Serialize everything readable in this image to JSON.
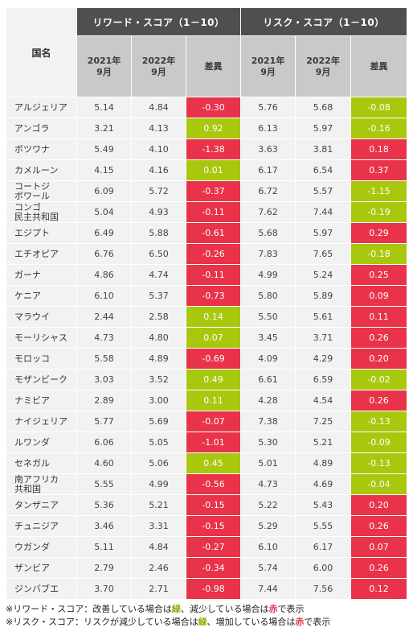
{
  "header": {
    "country_label": "国名",
    "reward_group": "リワード・スコア（1－10）",
    "risk_group": "リスク・スコア（1－10）",
    "col_2021": "2021年\n9月",
    "col_2022": "2022年\n9月",
    "col_diff": "差異"
  },
  "colors": {
    "improve": "#a8c80e",
    "worsen": "#e8334a"
  },
  "rows": [
    {
      "country": "アルジェリア",
      "r21": "5.14",
      "r22": "4.84",
      "rd": "-0.30",
      "rc": "red",
      "k21": "5.76",
      "k22": "5.68",
      "kd": "-0.08",
      "kc": "green"
    },
    {
      "country": "アンゴラ",
      "r21": "3.21",
      "r22": "4.13",
      "rd": "0.92",
      "rc": "green",
      "k21": "6.13",
      "k22": "5.97",
      "kd": "-0.16",
      "kc": "green"
    },
    {
      "country": "ボツワナ",
      "r21": "5.49",
      "r22": "4.10",
      "rd": "-1.38",
      "rc": "red",
      "k21": "3.63",
      "k22": "3.81",
      "kd": "0.18",
      "kc": "red"
    },
    {
      "country": "カメルーン",
      "r21": "4.15",
      "r22": "4.16",
      "rd": "0.01",
      "rc": "green",
      "k21": "6.17",
      "k22": "6.54",
      "kd": "0.37",
      "kc": "red"
    },
    {
      "country": "コートジ\nボワール",
      "r21": "6.09",
      "r22": "5.72",
      "rd": "-0.37",
      "rc": "red",
      "k21": "6.72",
      "k22": "5.57",
      "kd": "-1.15",
      "kc": "green"
    },
    {
      "country": "コンゴ\n民主共和国",
      "r21": "5.04",
      "r22": "4.93",
      "rd": "-0.11",
      "rc": "red",
      "k21": "7.62",
      "k22": "7.44",
      "kd": "-0.19",
      "kc": "green"
    },
    {
      "country": "エジプト",
      "r21": "6.49",
      "r22": "5.88",
      "rd": "-0.61",
      "rc": "red",
      "k21": "5.68",
      "k22": "5.97",
      "kd": "0.29",
      "kc": "red"
    },
    {
      "country": "エチオピア",
      "r21": "6.76",
      "r22": "6.50",
      "rd": "-0.26",
      "rc": "red",
      "k21": "7.83",
      "k22": "7.65",
      "kd": "-0.18",
      "kc": "green"
    },
    {
      "country": "ガーナ",
      "r21": "4.86",
      "r22": "4.74",
      "rd": "-0.11",
      "rc": "red",
      "k21": "4.99",
      "k22": "5.24",
      "kd": "0.25",
      "kc": "red"
    },
    {
      "country": "ケニア",
      "r21": "6.10",
      "r22": "5.37",
      "rd": "-0.73",
      "rc": "red",
      "k21": "5.80",
      "k22": "5.89",
      "kd": "0.09",
      "kc": "red"
    },
    {
      "country": "マラウイ",
      "r21": "2.44",
      "r22": "2.58",
      "rd": "0.14",
      "rc": "green",
      "k21": "5.50",
      "k22": "5.61",
      "kd": "0.11",
      "kc": "red"
    },
    {
      "country": "モーリシャス",
      "r21": "4.73",
      "r22": "4.80",
      "rd": "0.07",
      "rc": "green",
      "k21": "3.45",
      "k22": "3.71",
      "kd": "0.26",
      "kc": "red"
    },
    {
      "country": "モロッコ",
      "r21": "5.58",
      "r22": "4.89",
      "rd": "-0.69",
      "rc": "red",
      "k21": "4.09",
      "k22": "4.29",
      "kd": "0.20",
      "kc": "red"
    },
    {
      "country": "モザンビーク",
      "r21": "3.03",
      "r22": "3.52",
      "rd": "0.49",
      "rc": "green",
      "k21": "6.61",
      "k22": "6.59",
      "kd": "-0.02",
      "kc": "green"
    },
    {
      "country": "ナミビア",
      "r21": "2.89",
      "r22": "3.00",
      "rd": "0.11",
      "rc": "green",
      "k21": "4.28",
      "k22": "4.54",
      "kd": "0.26",
      "kc": "red"
    },
    {
      "country": "ナイジェリア",
      "r21": "5.77",
      "r22": "5.69",
      "rd": "-0.07",
      "rc": "red",
      "k21": "7.38",
      "k22": "7.25",
      "kd": "-0.13",
      "kc": "green"
    },
    {
      "country": "ルワンダ",
      "r21": "6.06",
      "r22": "5.05",
      "rd": "-1.01",
      "rc": "red",
      "k21": "5.30",
      "k22": "5.21",
      "kd": "-0.09",
      "kc": "green"
    },
    {
      "country": "セネガル",
      "r21": "4.60",
      "r22": "5.06",
      "rd": "0.45",
      "rc": "green",
      "k21": "5.01",
      "k22": "4.89",
      "kd": "-0.13",
      "kc": "green"
    },
    {
      "country": "南アフリカ\n共和国",
      "r21": "5.55",
      "r22": "4.99",
      "rd": "-0.56",
      "rc": "red",
      "k21": "4.73",
      "k22": "4.69",
      "kd": "-0.04",
      "kc": "green"
    },
    {
      "country": "タンザニア",
      "r21": "5.36",
      "r22": "5.21",
      "rd": "-0.15",
      "rc": "red",
      "k21": "5.22",
      "k22": "5.43",
      "kd": "0.20",
      "kc": "red"
    },
    {
      "country": "チュニジア",
      "r21": "3.46",
      "r22": "3.31",
      "rd": "-0.15",
      "rc": "red",
      "k21": "5.29",
      "k22": "5.55",
      "kd": "0.26",
      "kc": "red"
    },
    {
      "country": "ウガンダ",
      "r21": "5.11",
      "r22": "4.84",
      "rd": "-0.27",
      "rc": "red",
      "k21": "6.10",
      "k22": "6.17",
      "kd": "0.07",
      "kc": "red"
    },
    {
      "country": "ザンビア",
      "r21": "2.79",
      "r22": "2.46",
      "rd": "-0.34",
      "rc": "red",
      "k21": "5.74",
      "k22": "6.00",
      "kd": "0.26",
      "kc": "red"
    },
    {
      "country": "ジンバブエ",
      "r21": "3.70",
      "r22": "2.71",
      "rd": "-0.98",
      "rc": "red",
      "k21": "7.44",
      "k22": "7.56",
      "kd": "0.12",
      "kc": "red"
    }
  ],
  "notes": {
    "reward_prefix": "※リワード・スコア：改善している場合は",
    "reward_green": "緑",
    "reward_mid": "、減少している場合は",
    "reward_red": "赤",
    "reward_suffix": "で表示",
    "risk_prefix": "※リスク・スコア：リスクが減少している場合は",
    "risk_green": "緑",
    "risk_mid": "、増加している場合は",
    "risk_red": "赤",
    "risk_suffix": "で表示"
  }
}
